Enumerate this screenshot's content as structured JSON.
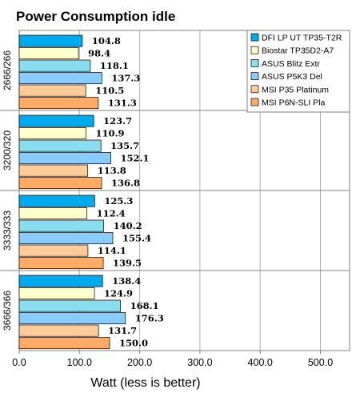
{
  "chart_data": {
    "type": "bar",
    "orientation": "horizontal",
    "title": "Power Consumption idle",
    "xlabel": "Watt (less is better)",
    "ylabel": "",
    "xlim": [
      0,
      550
    ],
    "xticks": [
      "0.0",
      "100.0",
      "200.0",
      "300.0",
      "400.0",
      "500.0"
    ],
    "grid": true,
    "legend_position": "top-right",
    "categories": [
      "2666/266",
      "3200/320",
      "3333/333",
      "3666/366"
    ],
    "series": [
      {
        "name": "DFI LP UT TP35-T2R",
        "color": "#00aaee",
        "values": [
          104.8,
          123.7,
          125.3,
          138.4
        ]
      },
      {
        "name": "Biostar TP35D2-A7",
        "color": "#ffffcc",
        "values": [
          98.4,
          110.9,
          112.4,
          124.9
        ]
      },
      {
        "name": "ASUS Blitz Extr",
        "color": "#88ddee",
        "values": [
          118.1,
          135.7,
          140.2,
          168.1
        ]
      },
      {
        "name": "ASUS P5K3 Del",
        "color": "#88ccff",
        "values": [
          137.3,
          152.1,
          155.4,
          176.3
        ]
      },
      {
        "name": "MSI P35 Platinum",
        "color": "#ffcc99",
        "values": [
          110.5,
          113.8,
          114.1,
          131.7
        ]
      },
      {
        "name": "MSI P6N-SLI Pla",
        "color": "#ffaa66",
        "values": [
          131.3,
          136.8,
          139.5,
          150.0
        ]
      }
    ]
  }
}
